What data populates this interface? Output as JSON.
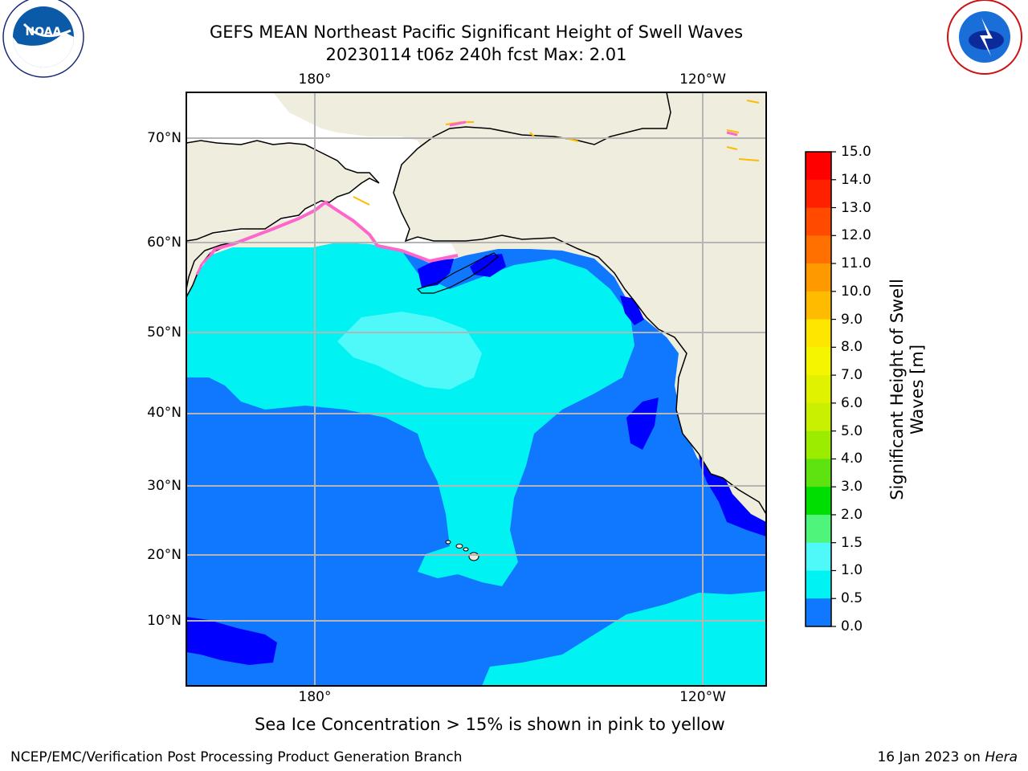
{
  "header": {
    "title_line1": "GEFS MEAN Northeast Pacific Significant Height of Swell Waves",
    "title_line2": "20230114 t06z 240h fcst   Max: 2.01"
  },
  "logos": {
    "left": {
      "text": "NOAA",
      "ring_text": "NATIONAL OCEANIC AND ATMOSPHERIC ADMINISTRATION · U.S. DEPARTMENT OF COMMERCE"
    },
    "right": {
      "ring_text": "NATIONAL WEATHER SERVICE"
    }
  },
  "map": {
    "lon_labels_top": [
      "180°",
      "120°W"
    ],
    "lon_labels_bottom": [
      "180°",
      "120°W"
    ],
    "lat_labels": [
      "70°N",
      "60°N",
      "50°N",
      "40°N",
      "30°N",
      "20°N",
      "10°N"
    ],
    "colors": {
      "land": "#efedde",
      "ocean_0_5": "#0000ff",
      "ocean_0_5_1": "#0f78ff",
      "ocean_1_1_5": "#00f2f2",
      "ocean_1_5_2": "#4ff9f9",
      "grid": "#b5b5b5",
      "sea_ice": "#ff66cc"
    }
  },
  "colorbar": {
    "label_line1": "Significant Height of Swell",
    "label_line2": "Waves [m]",
    "ticks": [
      "15.0",
      "14.0",
      "13.0",
      "12.0",
      "11.0",
      "10.0",
      "9.0",
      "8.0",
      "7.0",
      "6.0",
      "5.0",
      "4.0",
      "3.0",
      "2.0",
      "1.5",
      "1.0",
      "0.5",
      "0.0"
    ],
    "segments": [
      "#ff0000",
      "#ff2000",
      "#ff4a00",
      "#ff7000",
      "#ff9900",
      "#ffbb00",
      "#ffe600",
      "#f5f500",
      "#e0f200",
      "#c8f000",
      "#9cec00",
      "#5fe310",
      "#00dd00",
      "#4ff57a",
      "#a0fff5",
      "#4ff9f9",
      "#00f2f2",
      "#0f78ff",
      "#0000ff"
    ]
  },
  "notes": {
    "sea_ice": "Sea Ice Concentration > 15% is shown in pink to yellow"
  },
  "footer": {
    "left": "NCEP/EMC/Verification Post Processing Product Generation Branch",
    "right_prefix": "16 Jan 2023 on ",
    "right_host": "Hera"
  }
}
